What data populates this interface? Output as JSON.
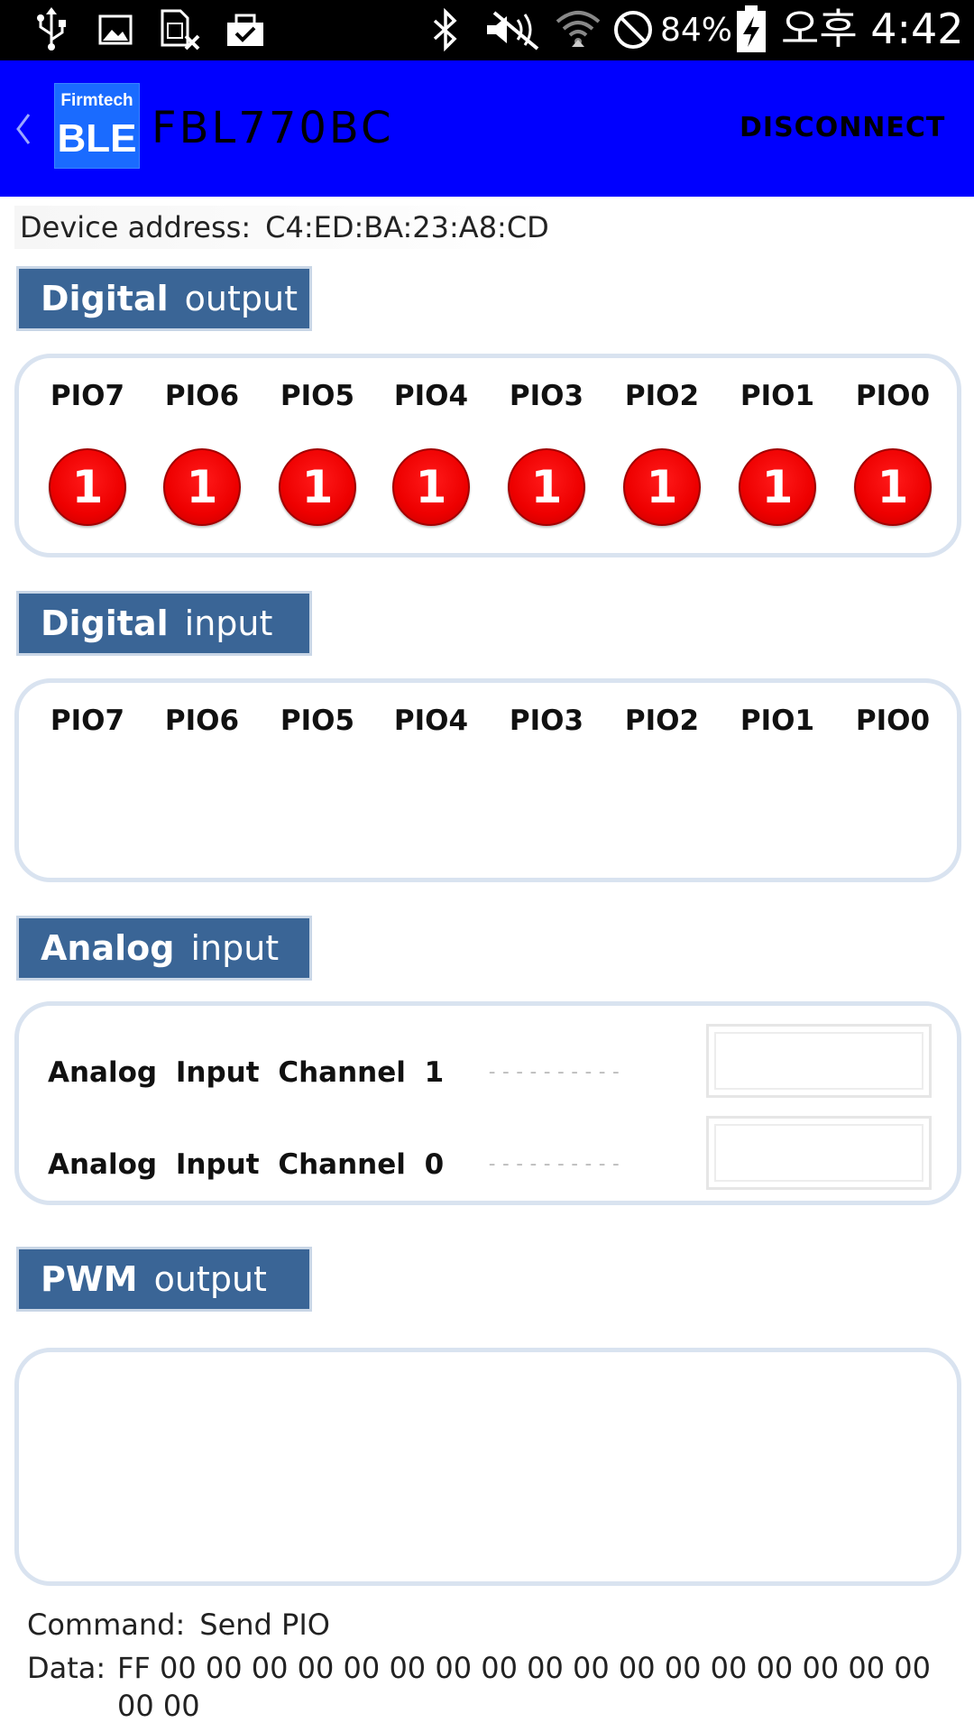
{
  "status_bar": {
    "battery_percent": "84%",
    "clock": "오후 4:42",
    "icons": [
      "usb-icon",
      "gallery-icon",
      "sim-off-icon",
      "clipboard-check-icon",
      "bluetooth-icon",
      "mute-icon",
      "wifi-icon",
      "block-icon",
      "battery-charging-icon"
    ]
  },
  "action_bar": {
    "logo_top": "Firmtech",
    "logo_bottom": "BLE",
    "title": "FBL770BC",
    "disconnect_label": "DISCONNECT",
    "back_icon": "chevron-left-icon",
    "color": "#0000ff"
  },
  "device": {
    "label": "Device address:",
    "address": "C4:ED:BA:23:A8:CD"
  },
  "digital_output": {
    "header_bold": "Digital",
    "header_rest": "output",
    "pins": [
      {
        "label": "PIO7",
        "value": "1"
      },
      {
        "label": "PIO6",
        "value": "1"
      },
      {
        "label": "PIO5",
        "value": "1"
      },
      {
        "label": "PIO4",
        "value": "1"
      },
      {
        "label": "PIO3",
        "value": "1"
      },
      {
        "label": "PIO2",
        "value": "1"
      },
      {
        "label": "PIO1",
        "value": "1"
      },
      {
        "label": "PIO0",
        "value": "1"
      }
    ],
    "led_color": "#ee0000"
  },
  "digital_input": {
    "header_bold": "Digital",
    "header_rest": "input",
    "pins": [
      "PIO7",
      "PIO6",
      "PIO5",
      "PIO4",
      "PIO3",
      "PIO2",
      "PIO1",
      "PIO0"
    ]
  },
  "analog_input": {
    "header_bold": "Analog",
    "header_rest": "input",
    "channels": [
      {
        "label": "Analog Input Channel 1",
        "placeholder": "----------"
      },
      {
        "label": "Analog Input Channel 0",
        "placeholder": "----------"
      }
    ]
  },
  "pwm_output": {
    "header_bold": "PWM",
    "header_rest": "output"
  },
  "footer": {
    "command_label": "Command:",
    "command_value": "Send PIO",
    "data_label": "Data:",
    "data_value": "FF 00 00 00 00 00 00 00 00 00 00 00 00 00 00 00 00 00 00 00"
  },
  "colors": {
    "header_bg": "#3a6596",
    "panel_border": "#d9e3f0"
  }
}
